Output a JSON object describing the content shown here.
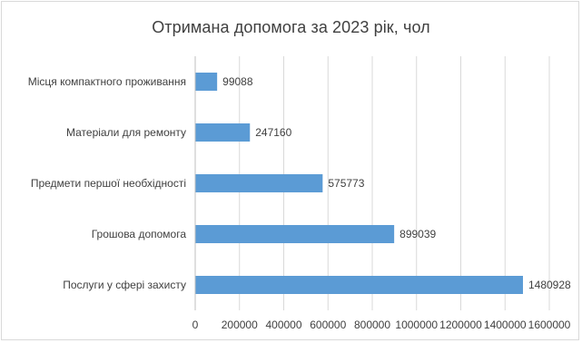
{
  "chart_data": {
    "type": "bar",
    "orientation": "horizontal",
    "title": "Отримана допомога за 2023 рік, чол",
    "categories": [
      "Місця компактного проживання",
      "Матеріали для ремонту",
      "Предмети першої необхідності",
      "Грошова допомога",
      "Послуги  у сфері захисту"
    ],
    "values": [
      99088,
      247160,
      575773,
      899039,
      1480928
    ],
    "value_labels": [
      "99088",
      "247160",
      "575773",
      "899039",
      "1480928"
    ],
    "x_ticks": [
      0,
      200000,
      400000,
      600000,
      800000,
      1000000,
      1200000,
      1400000,
      1600000
    ],
    "x_tick_labels": [
      "0",
      "200000",
      "400000",
      "600000",
      "800000",
      "1000000",
      "1200000",
      "1400000",
      "1600000"
    ],
    "xlim": [
      0,
      1600000
    ],
    "xlabel": "",
    "ylabel": "",
    "grid": "vertical",
    "legend": "none",
    "colors": {
      "bar": "#5b9bd5",
      "grid": "#d9d9d9",
      "axis": "#bfbfbf",
      "text": "#404040"
    }
  }
}
